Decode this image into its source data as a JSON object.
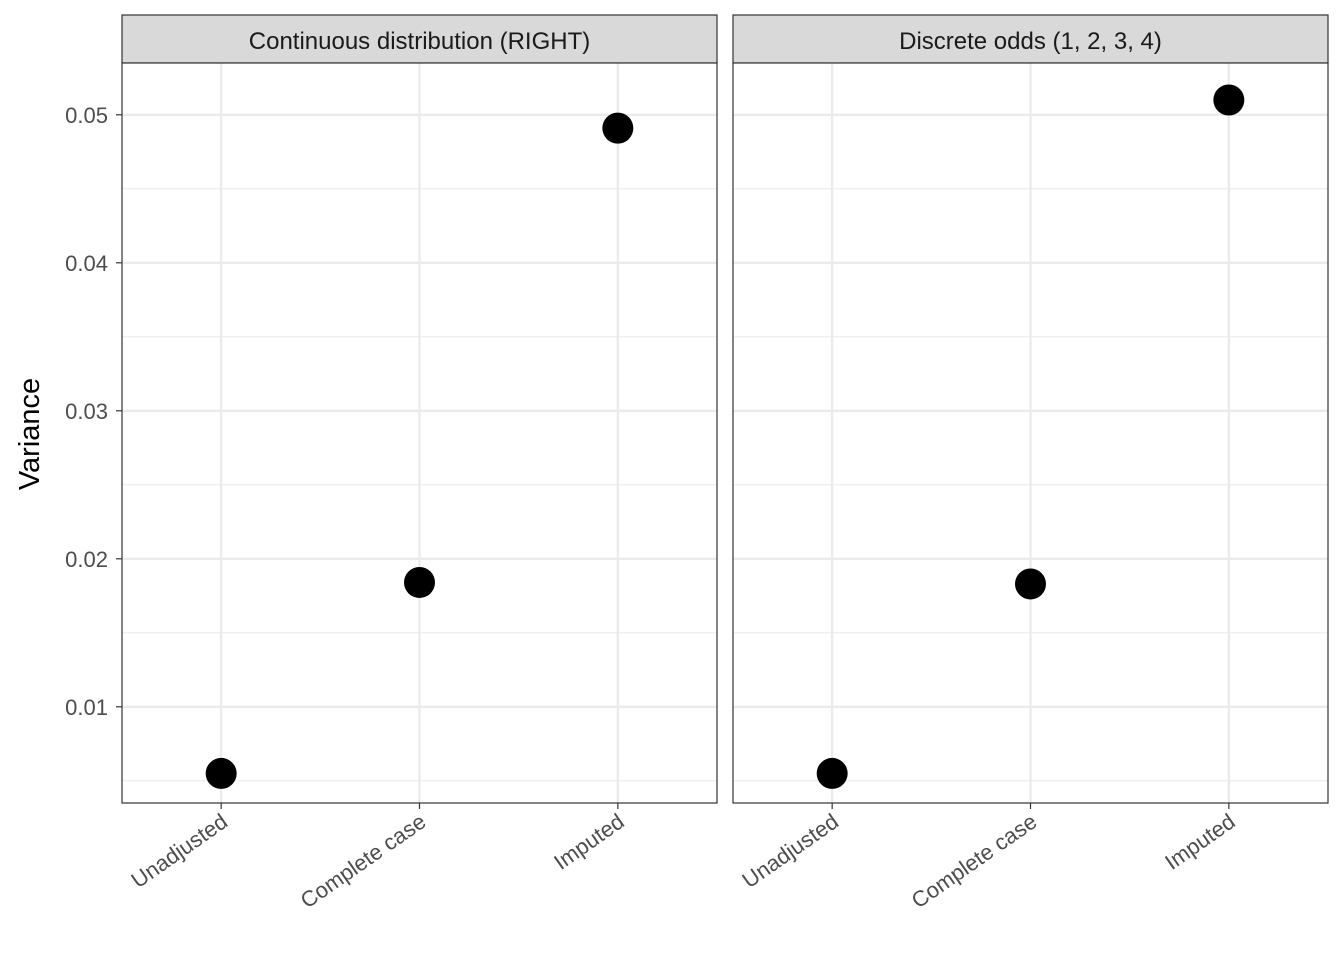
{
  "chart_data": {
    "type": "scatter",
    "ylabel": "Variance",
    "xlabel": "",
    "categories": [
      "Unadjusted",
      "Complete case",
      "Imputed"
    ],
    "ylim": [
      0.0035,
      0.0535
    ],
    "yticks": [
      0.01,
      0.02,
      0.03,
      0.04,
      0.05
    ],
    "ytick_labels": [
      "0.01",
      "0.02",
      "0.03",
      "0.04",
      "0.05"
    ],
    "grid": true,
    "point_color": "#000000",
    "panels": [
      {
        "strip": "Continuous distribution (RIGHT)",
        "values": [
          0.0055,
          0.0184,
          0.0491
        ]
      },
      {
        "strip": "Discrete odds (1, 2, 3, 4)",
        "values": [
          0.0055,
          0.0183,
          0.051
        ]
      }
    ]
  }
}
